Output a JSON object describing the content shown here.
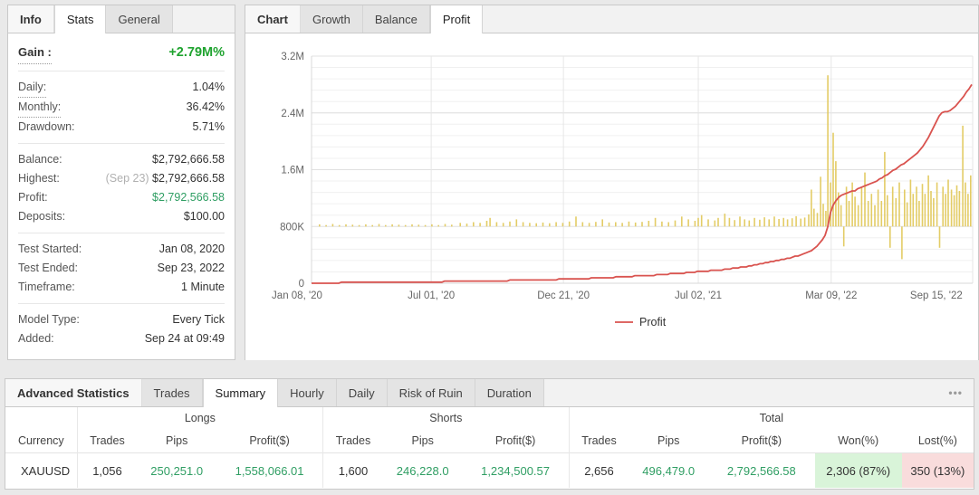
{
  "colors": {
    "gain_green": "#1fa32f",
    "value_green": "#2f9e63",
    "profit_line": "#d9534f",
    "bars": "#e2c95e",
    "won_bg": "#d9f4d9",
    "lost_bg": "#f9dcdc"
  },
  "stats_panel": {
    "title_tab": "Info",
    "tabs": [
      {
        "label": "Stats",
        "active": true
      },
      {
        "label": "General",
        "active": false
      }
    ],
    "gain": {
      "label": "Gain :",
      "value": "+2.79M%"
    },
    "sections": [
      [
        {
          "label": "Daily:",
          "value": "1.04%",
          "dotted": true
        },
        {
          "label": "Monthly:",
          "value": "36.42%",
          "dotted": true
        },
        {
          "label": "Drawdown:",
          "value": "5.71%"
        }
      ],
      [
        {
          "label": "Balance:",
          "value": "$2,792,666.58"
        },
        {
          "label": "Highest:",
          "value": "$2,792,666.58",
          "note": "(Sep 23)"
        },
        {
          "label": "Profit:",
          "value": "$2,792,566.58",
          "green": true
        },
        {
          "label": "Deposits:",
          "value": "$100.00"
        }
      ],
      [
        {
          "label": "Test Started:",
          "value": "Jan 08, 2020"
        },
        {
          "label": "Test Ended:",
          "value": "Sep 23, 2022"
        },
        {
          "label": "Timeframe:",
          "value": "1 Minute"
        }
      ],
      [
        {
          "label": "Model Type:",
          "value": "Every Tick"
        },
        {
          "label": "Added:",
          "value": "Sep 24 at 09:49"
        }
      ]
    ]
  },
  "chart_panel": {
    "title_tab": "Chart",
    "tabs": [
      {
        "label": "Growth",
        "active": false
      },
      {
        "label": "Balance",
        "active": false
      },
      {
        "label": "Profit",
        "active": true
      }
    ]
  },
  "chart_data": {
    "type": "line+bar",
    "unit": "M USD",
    "ylim": [
      0,
      3.2
    ],
    "y_ticks": [
      {
        "v": 0,
        "label": "0"
      },
      {
        "v": 0.8,
        "label": "800K"
      },
      {
        "v": 1.6,
        "label": "1.6M"
      },
      {
        "v": 2.4,
        "label": "2.4M"
      },
      {
        "v": 3.2,
        "label": "3.2M"
      }
    ],
    "y_minor_step": 0.16,
    "x_ticks": [
      {
        "t": 0,
        "label": "Jan 08, '20"
      },
      {
        "t": 0.181,
        "label": "Jul 01, '20"
      },
      {
        "t": 0.381,
        "label": "Dec 21, '20"
      },
      {
        "t": 0.585,
        "label": "Jul 02, '21"
      },
      {
        "t": 0.786,
        "label": "Mar 09, '22"
      },
      {
        "t": 0.945,
        "label": "Sep 15, '22"
      }
    ],
    "grid_vertical_tick_indexes": [
      1,
      2,
      3,
      4
    ],
    "legend": [
      {
        "label": "Profit",
        "color": "#d9534f"
      }
    ],
    "profit_line": [
      [
        0,
        0.005
      ],
      [
        0.08,
        0.01
      ],
      [
        0.16,
        0.018
      ],
      [
        0.24,
        0.028
      ],
      [
        0.32,
        0.042
      ],
      [
        0.4,
        0.06
      ],
      [
        0.46,
        0.085
      ],
      [
        0.52,
        0.115
      ],
      [
        0.57,
        0.15
      ],
      [
        0.62,
        0.19
      ],
      [
        0.66,
        0.24
      ],
      [
        0.69,
        0.29
      ],
      [
        0.715,
        0.34
      ],
      [
        0.735,
        0.385
      ],
      [
        0.75,
        0.43
      ],
      [
        0.762,
        0.5
      ],
      [
        0.77,
        0.58
      ],
      [
        0.776,
        0.66
      ],
      [
        0.78,
        0.74
      ],
      [
        0.783,
        0.92
      ],
      [
        0.787,
        1.07
      ],
      [
        0.792,
        1.16
      ],
      [
        0.8,
        1.23
      ],
      [
        0.81,
        1.27
      ],
      [
        0.82,
        1.3
      ],
      [
        0.83,
        1.34
      ],
      [
        0.84,
        1.38
      ],
      [
        0.85,
        1.42
      ],
      [
        0.86,
        1.47
      ],
      [
        0.87,
        1.53
      ],
      [
        0.88,
        1.59
      ],
      [
        0.89,
        1.65
      ],
      [
        0.9,
        1.71
      ],
      [
        0.91,
        1.78
      ],
      [
        0.918,
        1.85
      ],
      [
        0.925,
        1.93
      ],
      [
        0.932,
        2.03
      ],
      [
        0.938,
        2.14
      ],
      [
        0.944,
        2.26
      ],
      [
        0.95,
        2.37
      ],
      [
        0.955,
        2.42
      ],
      [
        0.96,
        2.4
      ],
      [
        0.966,
        2.44
      ],
      [
        0.972,
        2.48
      ],
      [
        0.978,
        2.54
      ],
      [
        0.984,
        2.61
      ],
      [
        0.99,
        2.68
      ],
      [
        0.994,
        2.73
      ],
      [
        0.997,
        2.78
      ],
      [
        1,
        2.82
      ]
    ],
    "bars": {
      "baseline": 0.8,
      "values": [
        [
          0.012,
          0.03
        ],
        [
          0.022,
          0.02
        ],
        [
          0.032,
          0.035
        ],
        [
          0.042,
          0.02
        ],
        [
          0.052,
          0.03
        ],
        [
          0.062,
          0.025
        ],
        [
          0.072,
          0.02
        ],
        [
          0.082,
          0.03
        ],
        [
          0.092,
          0.02
        ],
        [
          0.102,
          0.035
        ],
        [
          0.112,
          0.02
        ],
        [
          0.122,
          0.03
        ],
        [
          0.132,
          0.025
        ],
        [
          0.142,
          0.02
        ],
        [
          0.152,
          0.03
        ],
        [
          0.162,
          0.025
        ],
        [
          0.172,
          0.02
        ],
        [
          0.182,
          0.03
        ],
        [
          0.192,
          0.02
        ],
        [
          0.202,
          0.035
        ],
        [
          0.212,
          0.025
        ],
        [
          0.225,
          0.05
        ],
        [
          0.235,
          0.04
        ],
        [
          0.245,
          0.06
        ],
        [
          0.255,
          0.05
        ],
        [
          0.265,
          0.08
        ],
        [
          0.27,
          0.12
        ],
        [
          0.28,
          0.06
        ],
        [
          0.29,
          0.05
        ],
        [
          0.3,
          0.07
        ],
        [
          0.31,
          0.1
        ],
        [
          0.32,
          0.06
        ],
        [
          0.33,
          0.05
        ],
        [
          0.34,
          0.045
        ],
        [
          0.35,
          0.055
        ],
        [
          0.36,
          0.045
        ],
        [
          0.37,
          0.06
        ],
        [
          0.38,
          0.05
        ],
        [
          0.39,
          0.07
        ],
        [
          0.4,
          0.14
        ],
        [
          0.41,
          0.06
        ],
        [
          0.42,
          0.05
        ],
        [
          0.43,
          0.065
        ],
        [
          0.44,
          0.1
        ],
        [
          0.45,
          0.055
        ],
        [
          0.46,
          0.06
        ],
        [
          0.47,
          0.05
        ],
        [
          0.48,
          0.07
        ],
        [
          0.49,
          0.055
        ],
        [
          0.5,
          0.065
        ],
        [
          0.51,
          0.08
        ],
        [
          0.52,
          0.12
        ],
        [
          0.53,
          0.07
        ],
        [
          0.54,
          0.06
        ],
        [
          0.55,
          0.085
        ],
        [
          0.56,
          0.14
        ],
        [
          0.57,
          0.1
        ],
        [
          0.58,
          0.08
        ],
        [
          0.585,
          0.12
        ],
        [
          0.59,
          0.16
        ],
        [
          0.6,
          0.1
        ],
        [
          0.61,
          0.085
        ],
        [
          0.615,
          0.12
        ],
        [
          0.625,
          0.18
        ],
        [
          0.632,
          0.12
        ],
        [
          0.64,
          0.09
        ],
        [
          0.648,
          0.14
        ],
        [
          0.655,
          0.1
        ],
        [
          0.662,
          0.085
        ],
        [
          0.67,
          0.12
        ],
        [
          0.678,
          0.095
        ],
        [
          0.685,
          0.13
        ],
        [
          0.692,
          0.1
        ],
        [
          0.7,
          0.14
        ],
        [
          0.707,
          0.105
        ],
        [
          0.714,
          0.12
        ],
        [
          0.72,
          0.1
        ],
        [
          0.727,
          0.115
        ],
        [
          0.733,
          0.145
        ],
        [
          0.74,
          0.11
        ],
        [
          0.746,
          0.125
        ],
        [
          0.752,
          0.17
        ],
        [
          0.756,
          0.52
        ],
        [
          0.76,
          0.25
        ],
        [
          0.765,
          0.19
        ],
        [
          0.77,
          0.7
        ],
        [
          0.774,
          0.32
        ],
        [
          0.778,
          0.22
        ],
        [
          0.781,
          2.13
        ],
        [
          0.785,
          0.62
        ],
        [
          0.789,
          1.32
        ],
        [
          0.793,
          0.92
        ],
        [
          0.797,
          0.48
        ],
        [
          0.801,
          0.3
        ],
        [
          0.805,
          -0.28
        ],
        [
          0.809,
          0.56
        ],
        [
          0.813,
          0.36
        ],
        [
          0.818,
          0.62
        ],
        [
          0.822,
          0.42
        ],
        [
          0.827,
          0.3
        ],
        [
          0.832,
          0.56
        ],
        [
          0.837,
          0.76
        ],
        [
          0.842,
          0.36
        ],
        [
          0.847,
          0.46
        ],
        [
          0.852,
          0.3
        ],
        [
          0.857,
          0.52
        ],
        [
          0.862,
          0.36
        ],
        [
          0.867,
          1.05
        ],
        [
          0.871,
          0.44
        ],
        [
          0.875,
          -0.3
        ],
        [
          0.879,
          0.56
        ],
        [
          0.884,
          0.4
        ],
        [
          0.889,
          0.62
        ],
        [
          0.893,
          -0.46
        ],
        [
          0.897,
          0.52
        ],
        [
          0.901,
          0.34
        ],
        [
          0.906,
          0.66
        ],
        [
          0.91,
          0.46
        ],
        [
          0.915,
          0.56
        ],
        [
          0.919,
          0.36
        ],
        [
          0.924,
          0.6
        ],
        [
          0.928,
          0.46
        ],
        [
          0.933,
          0.72
        ],
        [
          0.937,
          0.5
        ],
        [
          0.941,
          0.4
        ],
        [
          0.946,
          0.62
        ],
        [
          0.95,
          -0.3
        ],
        [
          0.955,
          0.56
        ],
        [
          0.959,
          0.46
        ],
        [
          0.963,
          0.66
        ],
        [
          0.968,
          0.52
        ],
        [
          0.972,
          0.44
        ],
        [
          0.976,
          0.58
        ],
        [
          0.98,
          0.5
        ],
        [
          0.985,
          1.42
        ],
        [
          0.989,
          0.62
        ],
        [
          0.993,
          0.46
        ],
        [
          0.997,
          0.72
        ]
      ]
    }
  },
  "advanced_panel": {
    "title_tab": "Advanced Statistics",
    "tabs": [
      {
        "label": "Trades",
        "active": false
      },
      {
        "label": "Summary",
        "active": true
      },
      {
        "label": "Hourly",
        "active": false
      },
      {
        "label": "Daily",
        "active": false
      },
      {
        "label": "Risk of Ruin",
        "active": false
      },
      {
        "label": "Duration",
        "active": false
      }
    ],
    "menu_glyph": "•••",
    "table": {
      "groups": [
        {
          "label": "",
          "span": 1
        },
        {
          "label": "Longs",
          "span": 3
        },
        {
          "label": "Shorts",
          "span": 3
        },
        {
          "label": "Total",
          "span": 5
        }
      ],
      "columns": [
        "Currency",
        "Trades",
        "Pips",
        "Profit($)",
        "Trades",
        "Pips",
        "Profit($)",
        "Trades",
        "Pips",
        "Profit($)",
        "Won(%)",
        "Lost(%)"
      ],
      "rows": [
        [
          "XAUUSD",
          "1,056",
          "250,251.0",
          "1,558,066.01",
          "1,600",
          "246,228.0",
          "1,234,500.57",
          "2,656",
          "496,479.0",
          "2,792,566.58",
          "2,306 (87%)",
          "350 (13%)"
        ]
      ]
    }
  }
}
